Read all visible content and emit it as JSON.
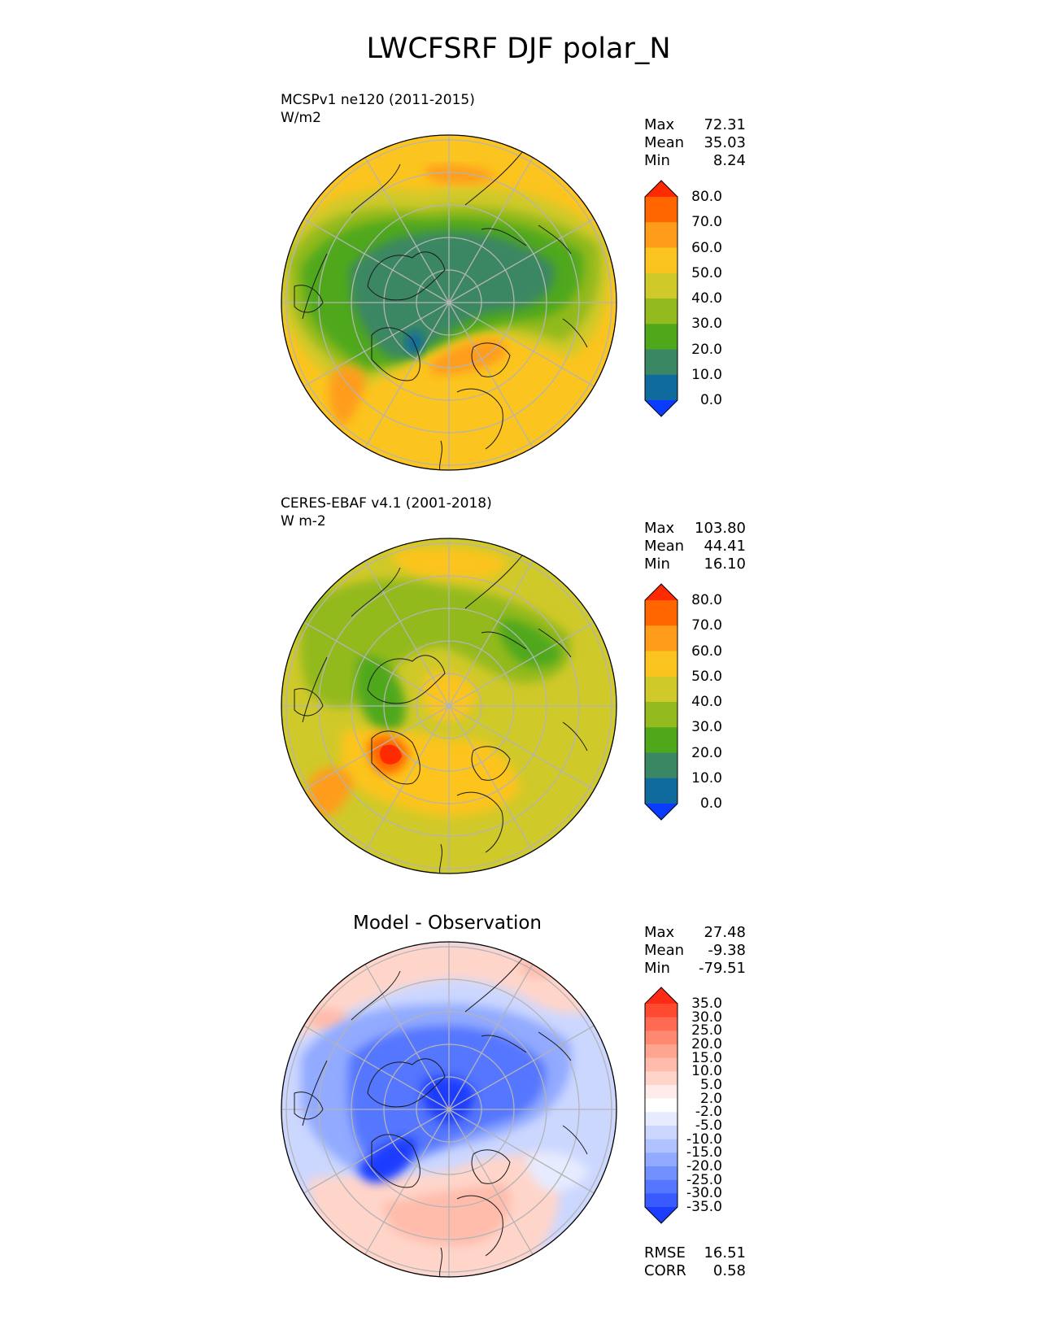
{
  "title": "LWCFSRF DJF polar_N",
  "panels": [
    {
      "id": "test",
      "name_line": "MCSPv1 ne120 (2011-2015)",
      "units": "W/m2",
      "stats": [
        {
          "label": "Max",
          "value": "72.31"
        },
        {
          "label": "Mean",
          "value": "35.03"
        },
        {
          "label": "Min",
          "value": "8.24"
        }
      ],
      "colorbar": {
        "ticks": [
          "80.0",
          "70.0",
          "60.0",
          "50.0",
          "40.0",
          "30.0",
          "20.0",
          "10.0",
          "0.0"
        ],
        "colors": [
          "#ff2a00",
          "#ff6600",
          "#ff9c1a",
          "#fcc41e",
          "#d0c92a",
          "#93ba1e",
          "#4fa81a",
          "#3a8764",
          "#0f6b9e",
          "#0a3cff"
        ]
      }
    },
    {
      "id": "ref",
      "name_line": "CERES-EBAF v4.1 (2001-2018)",
      "units": "W m-2",
      "stats": [
        {
          "label": "Max",
          "value": "103.80"
        },
        {
          "label": "Mean",
          "value": "44.41"
        },
        {
          "label": "Min",
          "value": "16.10"
        }
      ],
      "colorbar": {
        "ticks": [
          "80.0",
          "70.0",
          "60.0",
          "50.0",
          "40.0",
          "30.0",
          "20.0",
          "10.0",
          "0.0"
        ],
        "colors": [
          "#ff2a00",
          "#ff6600",
          "#ff9c1a",
          "#fcc41e",
          "#d0c92a",
          "#93ba1e",
          "#4fa81a",
          "#3a8764",
          "#0f6b9e",
          "#0a3cff"
        ]
      }
    },
    {
      "id": "diff",
      "center_title": "Model - Observation",
      "stats": [
        {
          "label": "Max",
          "value": "27.48"
        },
        {
          "label": "Mean",
          "value": "-9.38"
        },
        {
          "label": "Min",
          "value": "-79.51"
        }
      ],
      "colorbar": {
        "ticks": [
          "35.0",
          "30.0",
          "25.0",
          "20.0",
          "15.0",
          "10.0",
          "5.0",
          "2.0",
          "-2.0",
          "-5.0",
          "-10.0",
          "-15.0",
          "-20.0",
          "-25.0",
          "-30.0",
          "-35.0"
        ],
        "colors": [
          "#ff2a14",
          "#ff4a32",
          "#ff6a52",
          "#ff8870",
          "#ffa48e",
          "#ffbcab",
          "#ffd5ca",
          "#ffecea",
          "#ffffff",
          "#e6ebff",
          "#ccd7ff",
          "#b0c2ff",
          "#92aaff",
          "#7291ff",
          "#5576ff",
          "#385aff",
          "#1c3cff"
        ]
      },
      "metrics": [
        {
          "label": "RMSE",
          "value": "16.51"
        },
        {
          "label": "CORR",
          "value": "0.58"
        }
      ]
    }
  ]
}
